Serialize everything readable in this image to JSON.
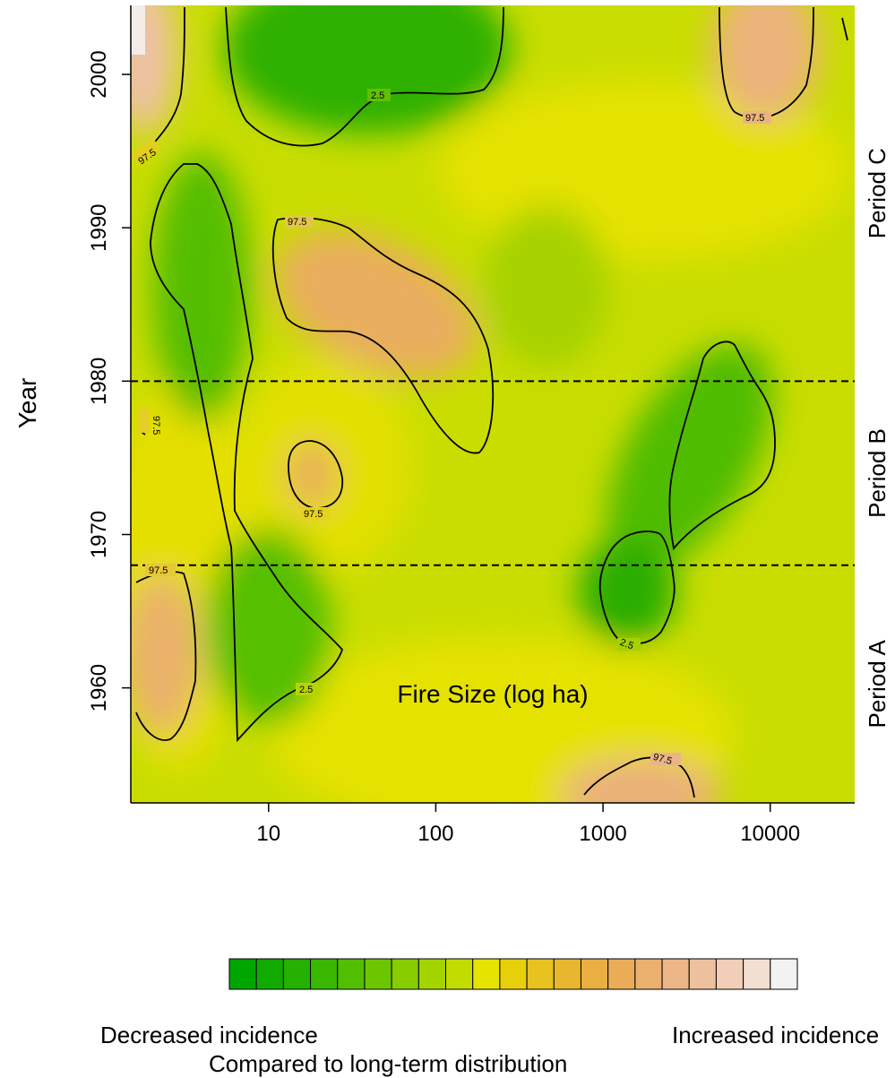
{
  "chart_data": {
    "type": "heatmap",
    "xlabel": "Fire Size (log ha)",
    "ylabel": "Year",
    "x_scale": "log",
    "xlim": [
      1.5,
      32000
    ],
    "ylim": [
      1952.5,
      2004.5
    ],
    "x_ticks": [
      {
        "value": 10,
        "label": "10"
      },
      {
        "value": 100,
        "label": "100"
      },
      {
        "value": 1000,
        "label": "1000"
      },
      {
        "value": 10000,
        "label": "10000"
      }
    ],
    "y_ticks": [
      {
        "value": 1960,
        "label": "1960"
      },
      {
        "value": 1970,
        "label": "1970"
      },
      {
        "value": 1980,
        "label": "1980"
      },
      {
        "value": 1990,
        "label": "1990"
      },
      {
        "value": 2000,
        "label": "2000"
      }
    ],
    "period_breaks": [
      1968,
      1980
    ],
    "periods": [
      {
        "label": "Period A",
        "from": 1952.5,
        "to": 1968
      },
      {
        "label": "Period B",
        "from": 1968,
        "to": 1980
      },
      {
        "label": "Period C",
        "from": 1980,
        "to": 2004.5
      }
    ],
    "contour_levels": [
      "2.5",
      "97.5"
    ],
    "regions": [
      {
        "level": "97.5",
        "kind": "increase",
        "x_range": [
          1.7,
          3.5
        ],
        "y_range": [
          1956.5,
          1968
        ]
      },
      {
        "level": "2.5",
        "kind": "decrease",
        "x_range": [
          2,
          30
        ],
        "y_range": [
          1956.5,
          1994.5
        ]
      },
      {
        "level": "97.5",
        "kind": "increase",
        "x_range": [
          15,
          30
        ],
        "y_range": [
          1971.5,
          1976.5
        ]
      },
      {
        "level": "97.5",
        "kind": "increase",
        "x_range": [
          12,
          230
        ],
        "y_range": [
          1975,
          1990.5
        ]
      },
      {
        "level": "2.5",
        "kind": "decrease",
        "x_range": [
          6,
          250
        ],
        "y_range": [
          1995.5,
          2004.5
        ]
      },
      {
        "level": "2.5",
        "kind": "decrease",
        "x_range": [
          1000,
          11000
        ],
        "y_range": [
          1963,
          1983
        ]
      },
      {
        "level": "97.5",
        "kind": "increase",
        "x_range": [
          5000,
          15000
        ],
        "y_range": [
          1997,
          2004.5
        ]
      },
      {
        "level": "97.5",
        "kind": "increase",
        "x_range": [
          800,
          3800
        ],
        "y_range": [
          1952.5,
          1956
        ]
      },
      {
        "level": "97.5",
        "kind": "increase",
        "x_range": [
          1.5,
          2.5
        ],
        "y_range": [
          1995,
          2004.5
        ]
      }
    ],
    "colors": {
      "decrease": "#22aa00",
      "neutral": "#e8e500",
      "increase": "#eab888",
      "max": "#ffffff"
    }
  },
  "legend": {
    "colors": [
      "#00a600",
      "#11aa00",
      "#24b100",
      "#3ab800",
      "#52bf00",
      "#6bc600",
      "#87cd00",
      "#a3d400",
      "#c3dc00",
      "#e6e300",
      "#e7d00a",
      "#e8c21f",
      "#e9b62f",
      "#eaaf43",
      "#ebac58",
      "#ecb06e",
      "#edb686",
      "#eec19e",
      "#f0ceb7",
      "#f1dfd2",
      "#f2f2f2"
    ],
    "left_label": "Decreased incidence",
    "right_label": "Increased incidence",
    "caption": "Compared to long-term distribution"
  }
}
